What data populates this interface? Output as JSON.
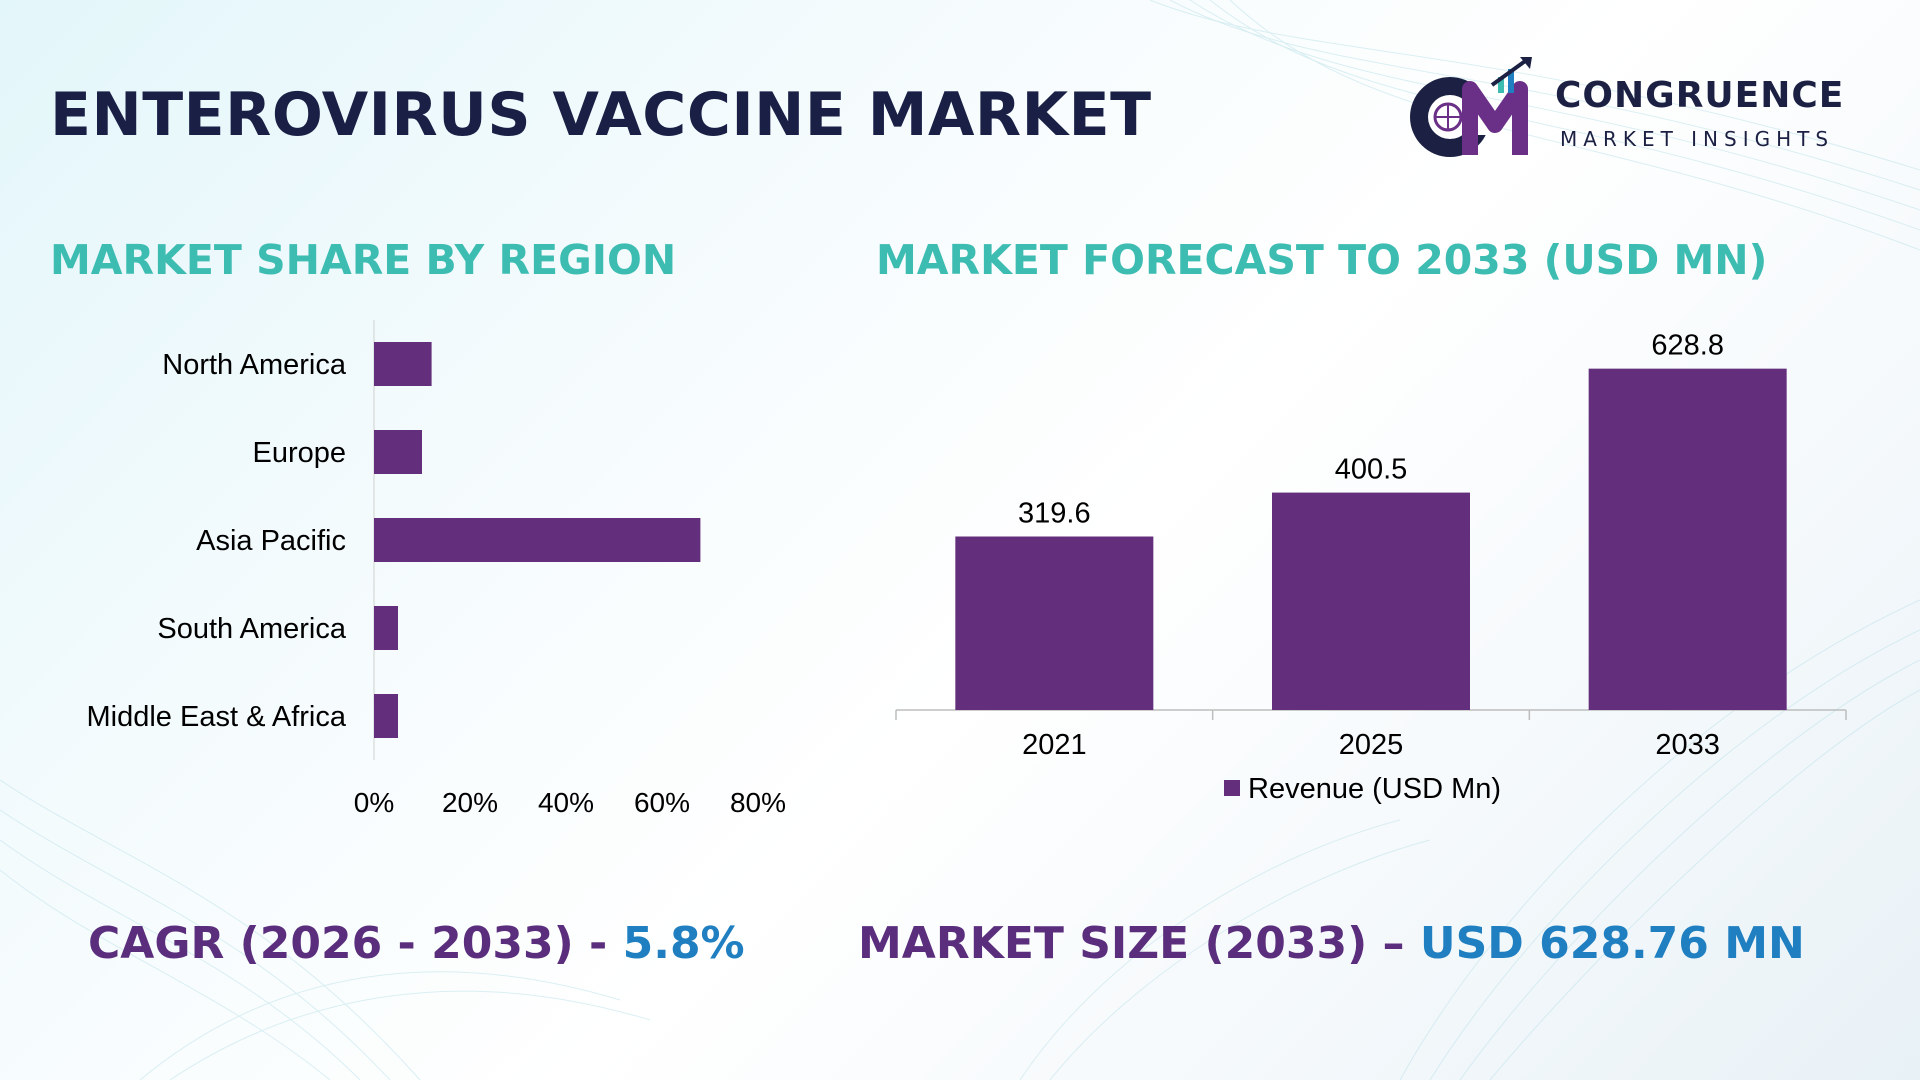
{
  "title": "ENTEROVIRUS VACCINE MARKET",
  "logo": {
    "name": "CONGRUENCE",
    "tagline": "MARKET INSIGHTS",
    "icon": "cm-monogram-logo"
  },
  "colors": {
    "title": "#191f45",
    "section_title": "#3dbcb2",
    "bar": "#632e7b",
    "footer_label": "#5a2e7c",
    "footer_value": "#1f7fc0"
  },
  "sections": {
    "region_title": "MARKET SHARE BY REGION",
    "forecast_title": "MARKET FORECAST TO 2033 (USD MN)"
  },
  "chart_data": [
    {
      "type": "bar",
      "orientation": "horizontal",
      "categories": [
        "North America",
        "Europe",
        "Asia Pacific",
        "South America",
        "Middle East & Africa"
      ],
      "values": [
        12,
        10,
        68,
        5,
        5
      ],
      "xlim": [
        0,
        80
      ],
      "x_ticks": [
        "0%",
        "20%",
        "40%",
        "60%",
        "80%"
      ],
      "grid": false,
      "legend": "none"
    },
    {
      "type": "bar",
      "orientation": "vertical",
      "categories": [
        "2021",
        "2025",
        "2033"
      ],
      "values": [
        319.6,
        400.5,
        628.8
      ],
      "data_labels": [
        "319.6",
        "400.5",
        "628.8"
      ],
      "series": [
        {
          "name": "Revenue (USD Mn)",
          "values": [
            319.6,
            400.5,
            628.8
          ]
        }
      ],
      "ylim": [
        0,
        700
      ],
      "grid": false,
      "legend": "bottom"
    }
  ],
  "footer": {
    "cagr_label": "CAGR (2026 - 2033) - ",
    "cagr_value": "5.8%",
    "size_label": "MARKET SIZE (2033) – ",
    "size_value": "USD 628.76 MN"
  }
}
